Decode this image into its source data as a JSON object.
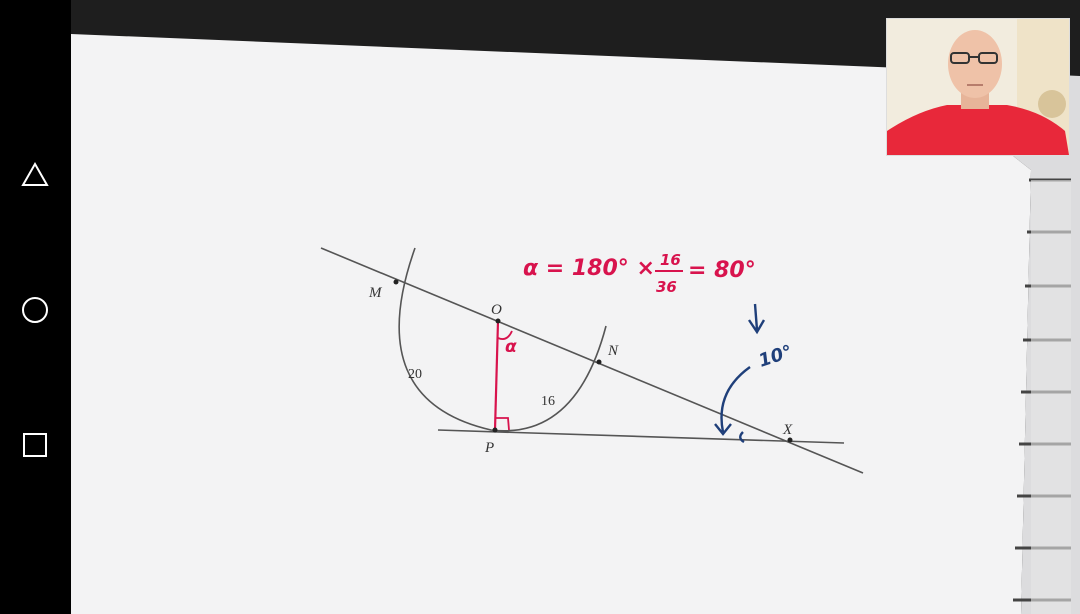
{
  "navigation": {
    "back_icon": "triangle-back-icon",
    "home_icon": "circle-home-icon",
    "recents_icon": "square-recents-icon"
  },
  "diagram": {
    "points": {
      "M": "M",
      "O": "O",
      "N": "N",
      "P": "P",
      "X": "X"
    },
    "arc_lengths": {
      "MP": "20",
      "PN": "16"
    },
    "angle_label": "α",
    "formula": {
      "lhs": "α = 180° ×",
      "numerator": "16",
      "denominator": "36",
      "result": "= 80°"
    },
    "side_note": "10°",
    "ink_colors": {
      "print": "#333333",
      "marker_red": "#d8134d",
      "marker_blue": "#1f3f7a"
    }
  },
  "webcam": {
    "shirt_color": "#e8283a"
  }
}
